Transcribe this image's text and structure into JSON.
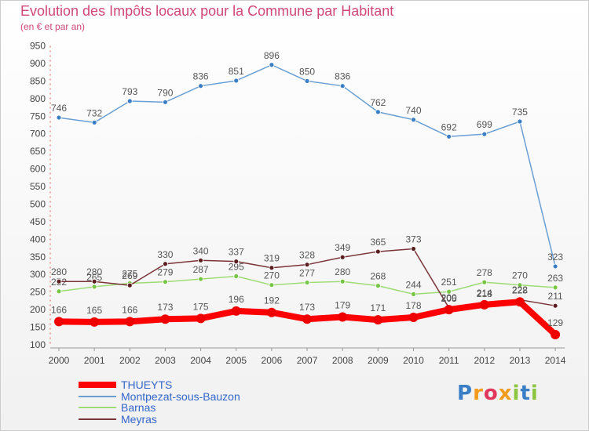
{
  "chart_data": {
    "type": "line",
    "title": "Evolution des Impôts locaux pour la Commune par Habitant",
    "subtitle": "(en € et par an)",
    "x": [
      "2000",
      "2001",
      "2002",
      "2003",
      "2004",
      "2005",
      "2006",
      "2007",
      "2008",
      "2009",
      "2010",
      "2011",
      "2012",
      "2013",
      "2014"
    ],
    "y_ticks": [
      100,
      150,
      200,
      250,
      300,
      350,
      400,
      450,
      500,
      550,
      600,
      650,
      700,
      750,
      800,
      850,
      900,
      950
    ],
    "ylim": [
      100,
      950
    ],
    "series": [
      {
        "name": "Montpezat-sous-Bauzon",
        "color": "#6a9fd3",
        "marker": "#3a7ec6",
        "values": [
          746,
          732,
          793,
          790,
          836,
          851,
          896,
          850,
          836,
          762,
          740,
          692,
          699,
          735,
          323
        ],
        "labels": [
          "746",
          "732",
          "793",
          "790",
          "836",
          "851",
          "896",
          "850",
          "836",
          "762",
          "740",
          "692",
          "699",
          "735",
          "323"
        ]
      },
      {
        "name": "Barnas",
        "color": "#9ddc74",
        "marker": "#77c545",
        "values": [
          252,
          265,
          275,
          279,
          287,
          295,
          270,
          277,
          280,
          268,
          244,
          251,
          278,
          270,
          263
        ],
        "labels": [
          "252",
          "265",
          "275",
          "279",
          "287",
          "295",
          "270",
          "277",
          "280",
          "268",
          "244",
          "251",
          "278",
          "270",
          "263"
        ]
      },
      {
        "name": "Meyras",
        "color": "#7a3336",
        "marker": "#5a1e20",
        "values": [
          280,
          280,
          269,
          330,
          340,
          337,
          319,
          328,
          349,
          365,
          373,
          205,
          218,
          228,
          211
        ],
        "labels": [
          "280",
          "280",
          "269",
          "330",
          "340",
          "337",
          "319",
          "328",
          "349",
          "365",
          "373",
          "205",
          "218",
          "228",
          "211"
        ]
      },
      {
        "name": "THUEYTS",
        "color": "#ff0000",
        "marker": "#ee0000",
        "values": [
          166,
          165,
          166,
          173,
          175,
          196,
          192,
          173,
          179,
          171,
          178,
          200,
          214,
          222,
          129
        ],
        "labels": [
          "166",
          "165",
          "166",
          "173",
          "175",
          "196",
          "192",
          "173",
          "179",
          "171",
          "178",
          "200",
          "214",
          "222",
          "129"
        ]
      }
    ],
    "legend": [
      {
        "name": "THUEYTS",
        "color": "#ff0000",
        "thick": true
      },
      {
        "name": "Montpezat-sous-Bauzon",
        "color": "#6a9fd3",
        "thick": false
      },
      {
        "name": "Barnas",
        "color": "#9ddc74",
        "thick": false
      },
      {
        "name": "Meyras",
        "color": "#7a3336",
        "thick": false
      }
    ],
    "legend_placement": "bottom-left",
    "grid": false
  },
  "logo": {
    "text": "Proxiti"
  }
}
